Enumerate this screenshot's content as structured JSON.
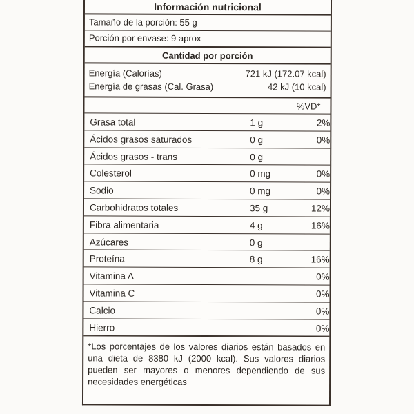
{
  "title": "Información nutricional",
  "serving_size": "Tamaño de la porción: 55 g",
  "servings_per_container": "Porción por envase: 9 aprox",
  "amount_header": "Cantidad por porción",
  "energy": [
    {
      "label": "Energía (Calorías)",
      "value": "721 kJ (172.07 kcal)"
    },
    {
      "label": "Energía de grasas (Cal. Grasa)",
      "value": "42 kJ (10 kcal)"
    }
  ],
  "dv_header": "%VD*",
  "nutrients": [
    {
      "name": "Grasa total",
      "amount": "1 g",
      "dv": "2%"
    },
    {
      "name": "Ácidos grasos saturados",
      "amount": "0 g",
      "dv": "0%"
    },
    {
      "name": "Ácidos grasos - trans",
      "amount": "0 g",
      "dv": ""
    },
    {
      "name": "Colesterol",
      "amount": "0 mg",
      "dv": "0%"
    },
    {
      "name": "Sodio",
      "amount": "0 mg",
      "dv": "0%"
    },
    {
      "name": "Carbohidratos totales",
      "amount": "35 g",
      "dv": "12%"
    },
    {
      "name": "Fibra alimentaria",
      "amount": "4 g",
      "dv": "16%"
    },
    {
      "name": "Azúcares",
      "amount": "0 g",
      "dv": ""
    },
    {
      "name": "Proteína",
      "amount": "8 g",
      "dv": "16%"
    },
    {
      "name": "Vitamina A",
      "amount": "",
      "dv": "0%"
    },
    {
      "name": "Vitamina C",
      "amount": "",
      "dv": "0%"
    },
    {
      "name": "Calcio",
      "amount": "",
      "dv": "0%"
    },
    {
      "name": "Hierro",
      "amount": "",
      "dv": "0%"
    }
  ],
  "footnote": "*Los porcentajes de los valores diarios están basados en una dieta de 8380 kJ (2000 kcal). Sus valores diarios pueden ser mayores o menores dependiendo de sus necesidades energéticas"
}
